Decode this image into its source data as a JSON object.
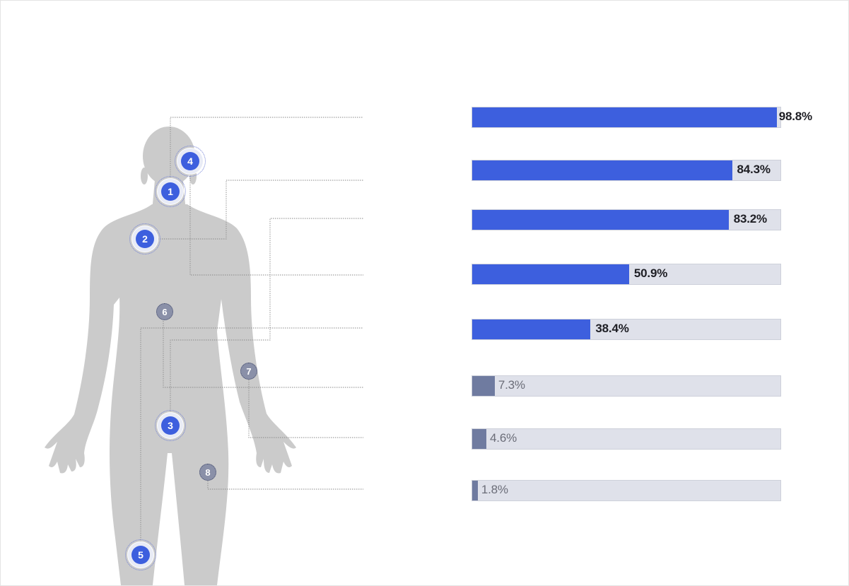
{
  "chart_data": {
    "type": "bar",
    "orientation": "horizontal",
    "title": "",
    "xlabel": "",
    "ylabel": "",
    "xlim": [
      0,
      100
    ],
    "unit": "%",
    "grid": false,
    "legend": "none",
    "colors": {
      "major": "#3d5fde",
      "minor": "#6f7ba0",
      "track": "#dfe1ea"
    },
    "bars": [
      {
        "marker": "1",
        "value": 98.8,
        "label": "98.8%",
        "group": "major"
      },
      {
        "marker": "2",
        "value": 84.3,
        "label": "84.3%",
        "group": "major"
      },
      {
        "marker": "3",
        "value": 83.2,
        "label": "83.2%",
        "group": "major"
      },
      {
        "marker": "4",
        "value": 50.9,
        "label": "50.9%",
        "group": "major"
      },
      {
        "marker": "5",
        "value": 38.4,
        "label": "38.4%",
        "group": "major"
      },
      {
        "marker": "6",
        "value": 7.3,
        "label": "7.3%",
        "group": "minor"
      },
      {
        "marker": "7",
        "value": 4.6,
        "label": "4.6%",
        "group": "minor"
      },
      {
        "marker": "8",
        "value": 1.8,
        "label": "1.8%",
        "group": "minor"
      }
    ]
  },
  "figure": {
    "icon": "human-body-silhouette-icon",
    "color": "#cccccc"
  }
}
